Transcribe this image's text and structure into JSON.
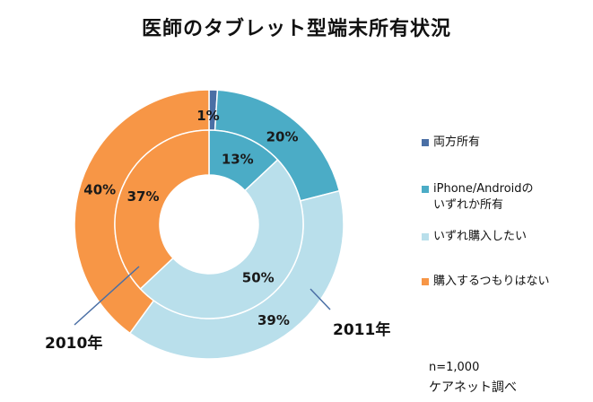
{
  "chart_data": {
    "type": "donut",
    "title": "医師のタブレット型端末所有状況",
    "categories": [
      "両方所有",
      "iPhone/Androidのいずれか所有",
      "いずれ購入したい",
      "購入するつもりはない"
    ],
    "colors": [
      "#4a6fa5",
      "#4bacc6",
      "#b9dfeb",
      "#f79646"
    ],
    "rings": [
      {
        "name": "2011年",
        "position": "outer",
        "values": [
          1,
          20,
          39,
          40
        ],
        "labels": [
          "1%",
          "20%",
          "39%",
          "40%"
        ]
      },
      {
        "name": "2010年",
        "position": "inner",
        "values": [
          0,
          13,
          50,
          37
        ],
        "labels": [
          "",
          "13%",
          "50%",
          "37%"
        ]
      }
    ],
    "legend": [
      {
        "label": "両方所有",
        "color": "#4a6fa5"
      },
      {
        "label": "iPhone/Androidの\nいずれか所有",
        "color": "#4bacc6"
      },
      {
        "label": "いずれ購入したい",
        "color": "#b9dfeb"
      },
      {
        "label": "購入するつもりはない",
        "color": "#f79646"
      }
    ],
    "legend_placement": "right",
    "notes": [
      "n=1,000",
      "ケアネット調べ"
    ]
  }
}
